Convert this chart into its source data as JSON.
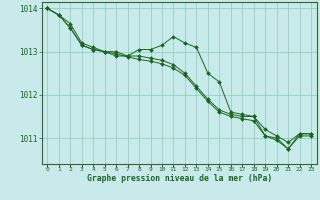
{
  "background_color": "#c8eaea",
  "grid_color": "#88ccbb",
  "line_color": "#1a6620",
  "marker_color": "#1a6620",
  "xlabel": "Graphe pression niveau de la mer (hPa)",
  "xlabel_color": "#1a6620",
  "tick_color": "#1a6620",
  "axis_color": "#336633",
  "xlim": [
    -0.5,
    23.5
  ],
  "ylim": [
    1010.4,
    1014.15
  ],
  "yticks": [
    1011,
    1012,
    1013,
    1014
  ],
  "xticks": [
    0,
    1,
    2,
    3,
    4,
    5,
    6,
    7,
    8,
    9,
    10,
    11,
    12,
    13,
    14,
    15,
    16,
    17,
    18,
    19,
    20,
    21,
    22,
    23
  ],
  "series": [
    {
      "x": [
        0,
        1,
        2,
        3,
        4,
        5,
        6,
        7,
        8,
        9,
        10,
        11,
        12,
        13,
        14,
        15,
        16,
        17,
        18,
        19,
        20,
        21,
        22,
        23
      ],
      "y": [
        1014.0,
        1013.85,
        1013.65,
        1013.2,
        1013.1,
        1013.0,
        1013.0,
        1012.9,
        1012.9,
        1012.85,
        1012.8,
        1012.7,
        1012.5,
        1012.2,
        1011.9,
        1011.65,
        1011.55,
        1011.5,
        1011.5,
        1011.2,
        1011.05,
        1010.9,
        1011.1,
        1011.1
      ]
    },
    {
      "x": [
        0,
        1,
        2,
        3,
        4,
        5,
        6,
        7,
        8,
        9,
        10,
        11,
        12,
        13,
        14,
        15,
        16,
        17,
        18,
        19,
        20,
        21,
        22,
        23
      ],
      "y": [
        1014.0,
        1013.85,
        1013.55,
        1013.15,
        1013.05,
        1013.0,
        1012.9,
        1012.9,
        1013.05,
        1013.05,
        1013.15,
        1013.35,
        1013.2,
        1013.1,
        1012.5,
        1012.3,
        1011.6,
        1011.55,
        1011.5,
        1011.05,
        1011.0,
        1010.75,
        1011.1,
        1011.1
      ]
    },
    {
      "x": [
        0,
        1,
        2,
        3,
        4,
        5,
        6,
        7,
        8,
        9,
        10,
        11,
        12,
        13,
        14,
        15,
        16,
        17,
        18,
        19,
        20,
        21,
        22,
        23
      ],
      "y": [
        1014.0,
        1013.85,
        1013.55,
        1013.15,
        1013.05,
        1013.0,
        1012.95,
        1012.88,
        1012.82,
        1012.78,
        1012.72,
        1012.62,
        1012.45,
        1012.15,
        1011.85,
        1011.6,
        1011.5,
        1011.45,
        1011.4,
        1011.05,
        1010.95,
        1010.75,
        1011.05,
        1011.05
      ]
    }
  ]
}
